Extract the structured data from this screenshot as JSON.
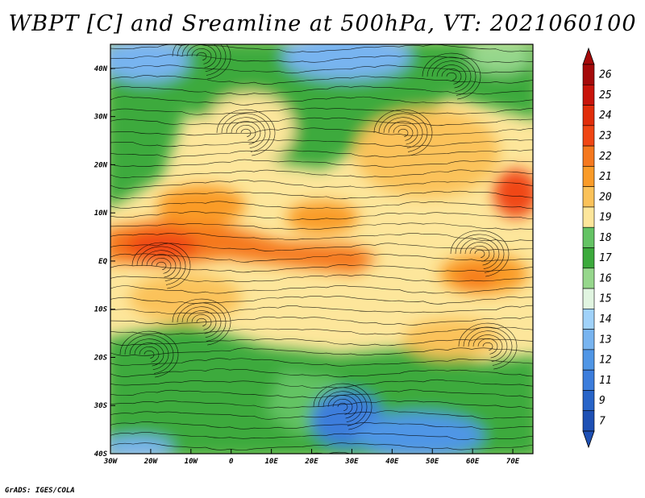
{
  "title": "WBPT [C] and Sreamline at 500hPa, VT: 2021060100",
  "credit": "GrADS: IGES/COLA",
  "map": {
    "lon_labels": [
      "30W",
      "20W",
      "10W",
      "0",
      "10E",
      "20E",
      "30E",
      "40E",
      "50E",
      "60E",
      "70E"
    ],
    "lat_labels": [
      "40N",
      "30N",
      "20N",
      "10N",
      "EQ",
      "10S",
      "20S",
      "30S",
      "40S"
    ],
    "lon_range": [
      -30,
      75
    ],
    "lat_range": [
      -40,
      45
    ]
  },
  "colorbar": {
    "levels": [
      "26",
      "25",
      "24",
      "23",
      "22",
      "21",
      "20",
      "19",
      "18",
      "17",
      "16",
      "15",
      "14",
      "13",
      "12",
      "11",
      "9",
      "7"
    ],
    "colors": [
      "#a50a0a",
      "#c8140a",
      "#e12d0a",
      "#f04614",
      "#f5781e",
      "#fa9b28",
      "#fbc25a",
      "#fde69b",
      "#64c364",
      "#3caa3c",
      "#96d78c",
      "#e1f5e1",
      "#a0d2fa",
      "#78b4f0",
      "#5096e6",
      "#3c7ddc",
      "#2864c8",
      "#1e50b4"
    ]
  }
}
